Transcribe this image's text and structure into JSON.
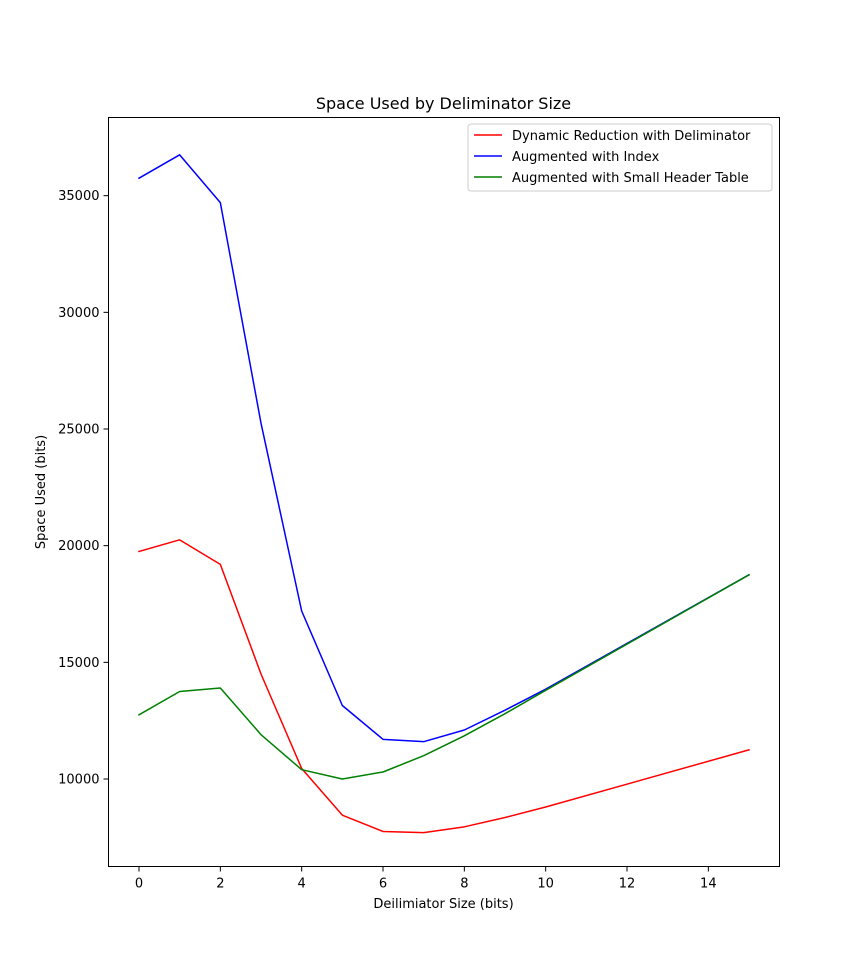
{
  "chart_data": {
    "type": "line",
    "title": "Space Used by Deliminator Size",
    "xlabel": "Deilimiator Size (bits)",
    "ylabel": "Space Used (bits)",
    "xlim": [
      -0.75,
      15.75
    ],
    "ylim": [
      6250,
      38350
    ],
    "x_ticks": [
      0,
      2,
      4,
      6,
      8,
      10,
      12,
      14
    ],
    "y_ticks": [
      10000,
      15000,
      20000,
      25000,
      30000,
      35000
    ],
    "grid": false,
    "legend_position": "top-right",
    "x": [
      0,
      1,
      2,
      3,
      4,
      5,
      6,
      7,
      8,
      9,
      10,
      15
    ],
    "series": [
      {
        "name": "Dynamic Reduction with Deliminator",
        "color": "#ff0000",
        "values": [
          19750,
          20250,
          19200,
          14500,
          10450,
          8450,
          7750,
          7700,
          7950,
          8350,
          8800,
          11250
        ]
      },
      {
        "name": "Augmented with Index",
        "color": "#0000ff",
        "values": [
          35750,
          36750,
          34700,
          25250,
          17200,
          13150,
          11700,
          11600,
          12100,
          12950,
          13850,
          18750
        ]
      },
      {
        "name": "Augmented with Small Header Table",
        "color": "#008000",
        "values": [
          12750,
          13750,
          13900,
          11900,
          10400,
          10000,
          10300,
          11000,
          11850,
          12800,
          13800,
          18750
        ]
      }
    ]
  }
}
